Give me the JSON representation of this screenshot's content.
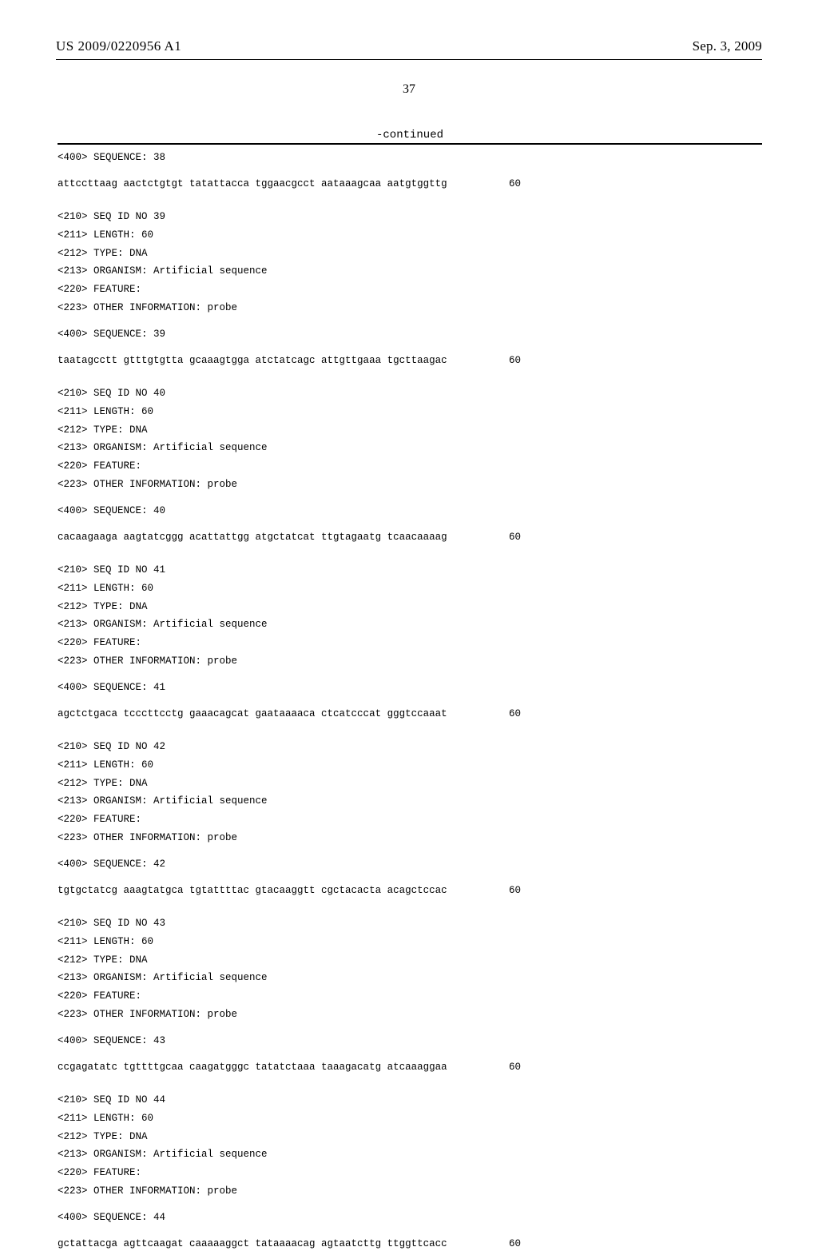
{
  "header": {
    "publication_number": "US 2009/0220956 A1",
    "publication_date": "Sep. 3, 2009"
  },
  "page_number": "37",
  "continued_label": "-continued",
  "entries": [
    {
      "pre_header": "<400> SEQUENCE: 38",
      "sequence_text": "attccttaag aactctgtgt tatattacca tggaacgcct aataaagcaa aatgtggttg",
      "sequence_len": "60",
      "meta": [
        "<210> SEQ ID NO 39",
        "<211> LENGTH: 60",
        "<212> TYPE: DNA",
        "<213> ORGANISM: Artificial sequence",
        "<220> FEATURE:",
        "<223> OTHER INFORMATION: probe"
      ],
      "seq_label": "<400> SEQUENCE: 39",
      "next_sequence_text": "taatagcctt gtttgtgtta gcaaagtgga atctatcagc attgttgaaa tgcttaagac",
      "next_sequence_len": "60"
    },
    {
      "meta": [
        "<210> SEQ ID NO 40",
        "<211> LENGTH: 60",
        "<212> TYPE: DNA",
        "<213> ORGANISM: Artificial sequence",
        "<220> FEATURE:",
        "<223> OTHER INFORMATION: probe"
      ],
      "seq_label": "<400> SEQUENCE: 40",
      "next_sequence_text": "cacaagaaga aagtatcggg acattattgg atgctatcat ttgtagaatg tcaacaaaag",
      "next_sequence_len": "60"
    },
    {
      "meta": [
        "<210> SEQ ID NO 41",
        "<211> LENGTH: 60",
        "<212> TYPE: DNA",
        "<213> ORGANISM: Artificial sequence",
        "<220> FEATURE:",
        "<223> OTHER INFORMATION: probe"
      ],
      "seq_label": "<400> SEQUENCE: 41",
      "next_sequence_text": "agctctgaca tcccttcctg gaaacagcat gaataaaaca ctcatcccat gggtccaaat",
      "next_sequence_len": "60"
    },
    {
      "meta": [
        "<210> SEQ ID NO 42",
        "<211> LENGTH: 60",
        "<212> TYPE: DNA",
        "<213> ORGANISM: Artificial sequence",
        "<220> FEATURE:",
        "<223> OTHER INFORMATION: probe"
      ],
      "seq_label": "<400> SEQUENCE: 42",
      "next_sequence_text": "tgtgctatcg aaagtatgca tgtattttac gtacaaggtt cgctacacta acagctccac",
      "next_sequence_len": "60"
    },
    {
      "meta": [
        "<210> SEQ ID NO 43",
        "<211> LENGTH: 60",
        "<212> TYPE: DNA",
        "<213> ORGANISM: Artificial sequence",
        "<220> FEATURE:",
        "<223> OTHER INFORMATION: probe"
      ],
      "seq_label": "<400> SEQUENCE: 43",
      "next_sequence_text": "ccgagatatc tgttttgcaa caagatgggc tatatctaaa taaagacatg atcaaaggaa",
      "next_sequence_len": "60"
    },
    {
      "meta": [
        "<210> SEQ ID NO 44",
        "<211> LENGTH: 60",
        "<212> TYPE: DNA",
        "<213> ORGANISM: Artificial sequence",
        "<220> FEATURE:",
        "<223> OTHER INFORMATION: probe"
      ],
      "seq_label": "<400> SEQUENCE: 44",
      "next_sequence_text": "gctattacga agttcaagat caaaaaggct tataaaacag agtaatcttg ttggttcacc",
      "next_sequence_len": "60"
    }
  ]
}
